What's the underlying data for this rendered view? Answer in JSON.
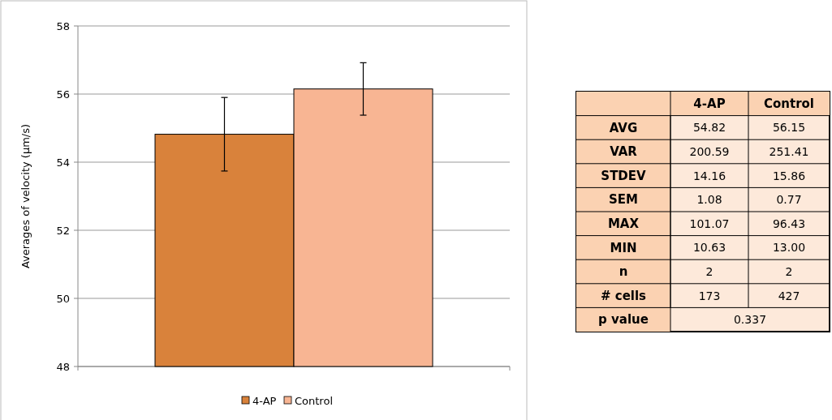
{
  "chart_data": [
    {
      "type": "bar",
      "ylabel": "Averages of velocity (µm/s)",
      "categories": [
        null
      ],
      "series": [
        {
          "name": "4-AP",
          "color": "#d9823b",
          "values": [
            54.82
          ],
          "errors": [
            1.08
          ]
        },
        {
          "name": "Control",
          "color": "#f8b593",
          "values": [
            56.15
          ],
          "errors": [
            0.77
          ]
        }
      ],
      "ylim": [
        48,
        58
      ],
      "yticks": [
        48,
        50,
        52,
        54,
        56,
        58
      ],
      "grid": "y",
      "legend": "bottom"
    },
    {
      "type": "other",
      "categories": [
        "4-AP",
        "Control"
      ],
      "y_categories": [
        "AVG",
        "VAR",
        "STDEV",
        "SEM",
        "MAX",
        "MIN",
        "n",
        "# cells",
        "p value"
      ],
      "cell_labels": [
        [
          "54.82",
          "56.15"
        ],
        [
          "200.59",
          "251.41"
        ],
        [
          "14.16",
          "15.86"
        ],
        [
          "1.08",
          "0.77"
        ],
        [
          "101.07",
          "96.43"
        ],
        [
          "10.63",
          "13.00"
        ],
        [
          "2",
          "2"
        ],
        [
          "173",
          "427"
        ],
        [
          "0.337",
          null
        ]
      ]
    }
  ]
}
